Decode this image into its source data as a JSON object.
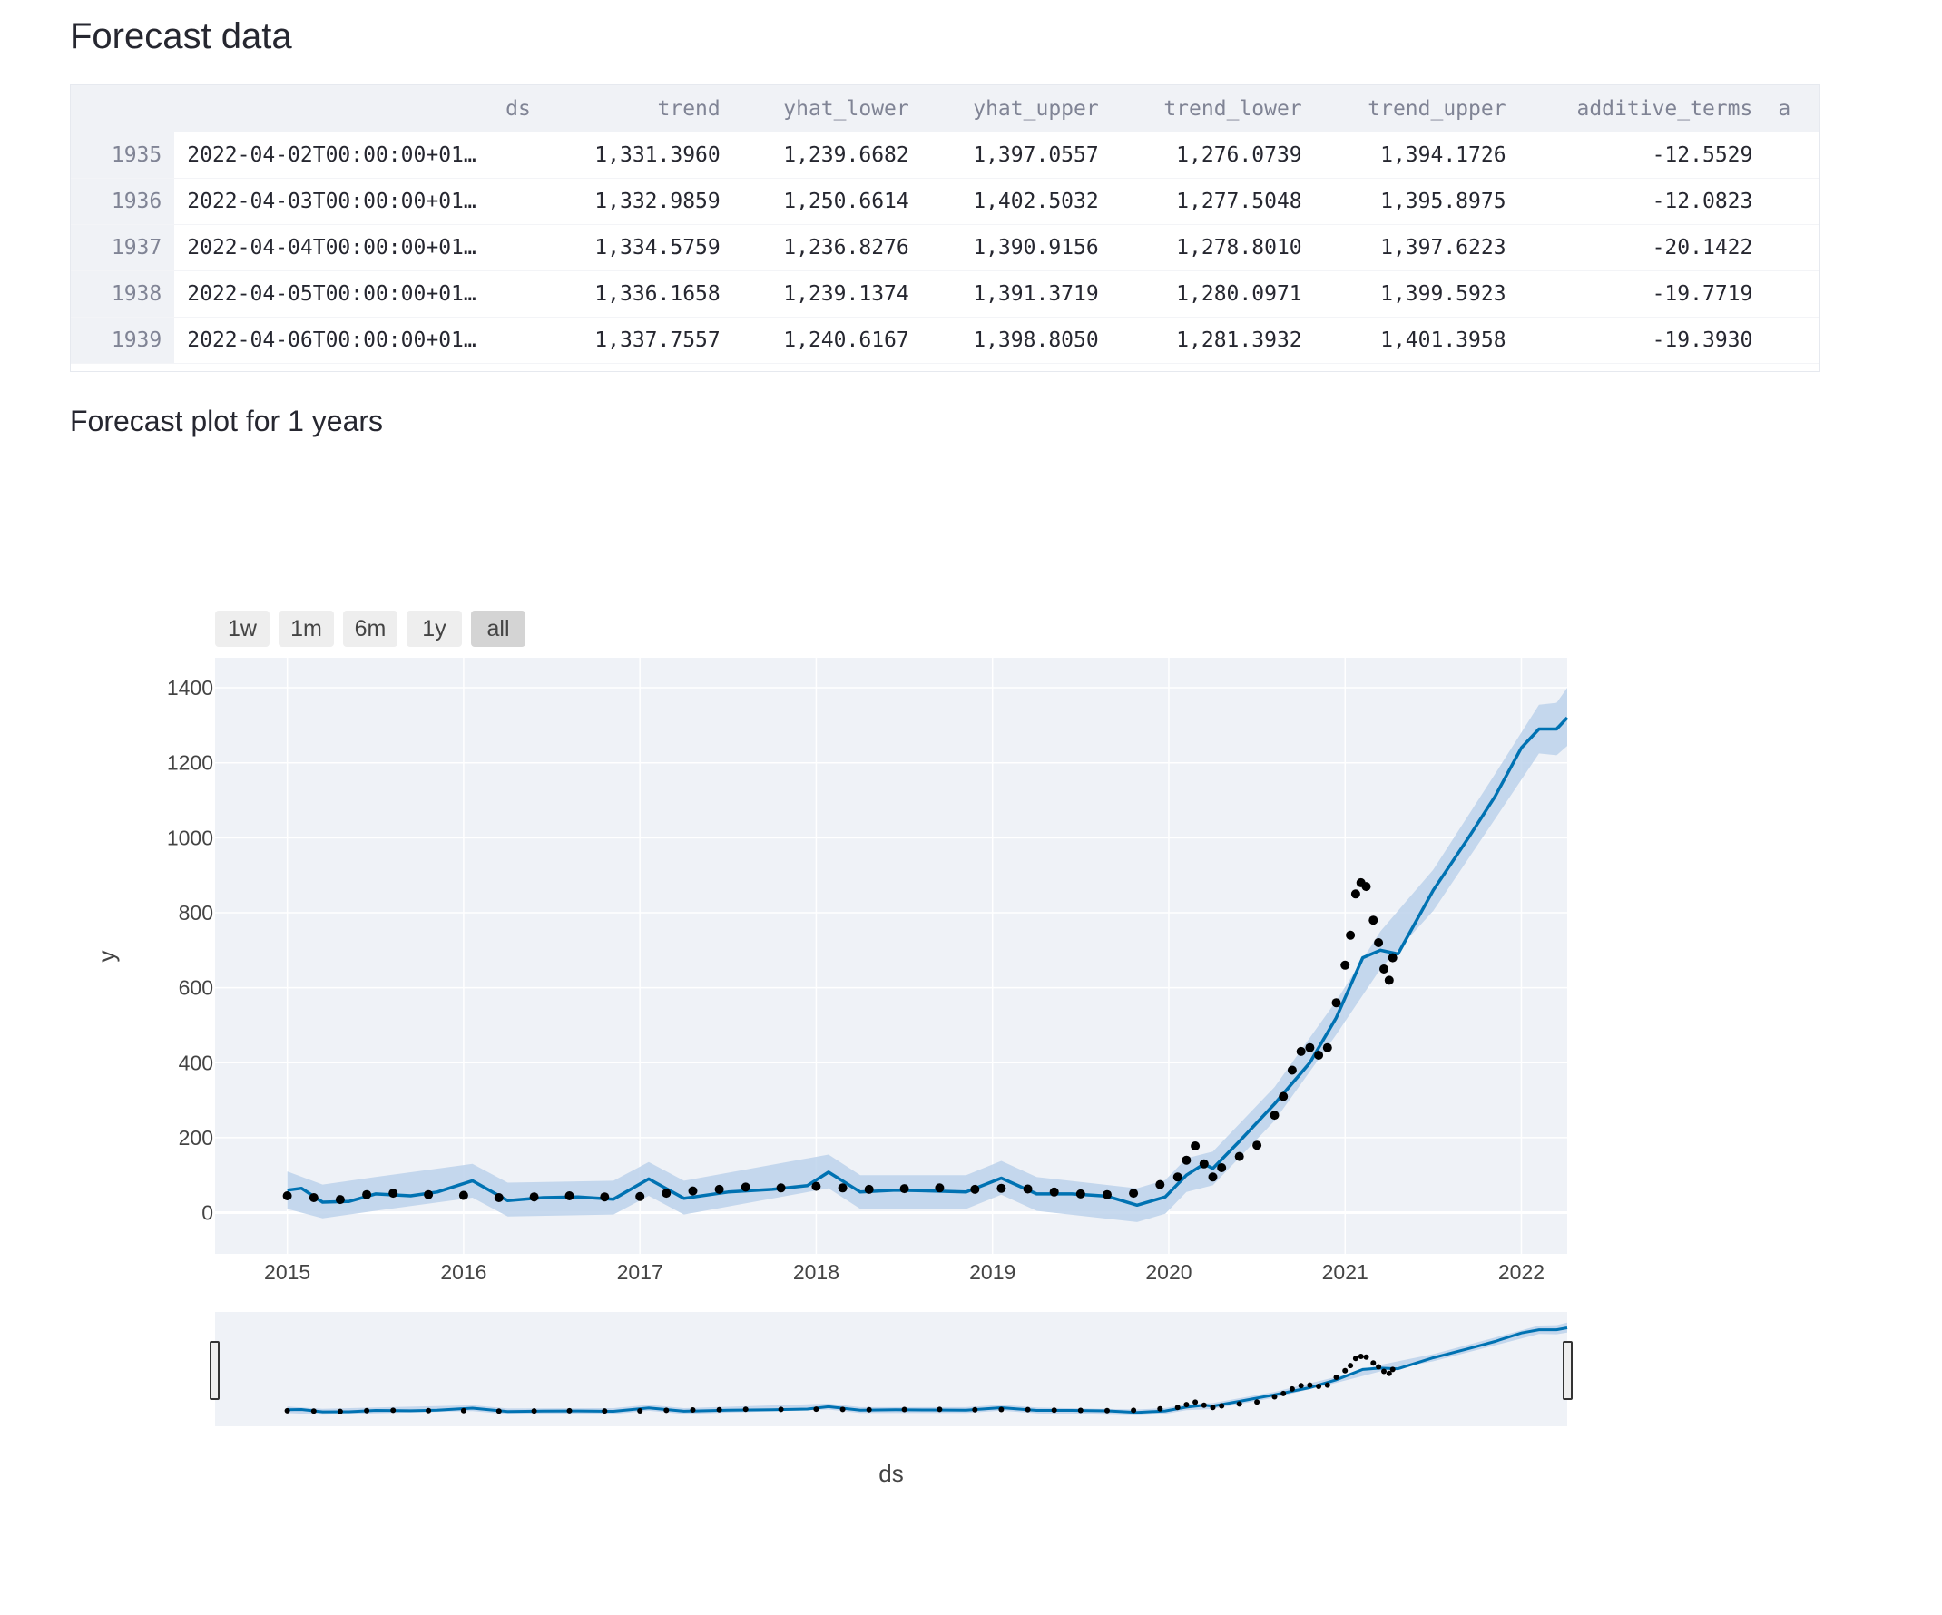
{
  "headings": {
    "forecast_data": "Forecast data",
    "forecast_plot": "Forecast plot for 1 years"
  },
  "table": {
    "columns": [
      "",
      "ds",
      "trend",
      "yhat_lower",
      "yhat_upper",
      "trend_lower",
      "trend_upper",
      "additive_terms",
      "a"
    ],
    "rows": [
      {
        "index": "1935",
        "ds": "2022-04-02T00:00:00+01…",
        "trend": "1,331.3960",
        "yhat_lower": "1,239.6682",
        "yhat_upper": "1,397.0557",
        "trend_lower": "1,276.0739",
        "trend_upper": "1,394.1726",
        "additive_terms": "-12.5529"
      },
      {
        "index": "1936",
        "ds": "2022-04-03T00:00:00+01…",
        "trend": "1,332.9859",
        "yhat_lower": "1,250.6614",
        "yhat_upper": "1,402.5032",
        "trend_lower": "1,277.5048",
        "trend_upper": "1,395.8975",
        "additive_terms": "-12.0823"
      },
      {
        "index": "1937",
        "ds": "2022-04-04T00:00:00+01…",
        "trend": "1,334.5759",
        "yhat_lower": "1,236.8276",
        "yhat_upper": "1,390.9156",
        "trend_lower": "1,278.8010",
        "trend_upper": "1,397.6223",
        "additive_terms": "-20.1422"
      },
      {
        "index": "1938",
        "ds": "2022-04-05T00:00:00+01…",
        "trend": "1,336.1658",
        "yhat_lower": "1,239.1374",
        "yhat_upper": "1,391.3719",
        "trend_lower": "1,280.0971",
        "trend_upper": "1,399.5923",
        "additive_terms": "-19.7719"
      },
      {
        "index": "1939",
        "ds": "2022-04-06T00:00:00+01…",
        "trend": "1,337.7557",
        "yhat_lower": "1,240.6167",
        "yhat_upper": "1,398.8050",
        "trend_lower": "1,281.3932",
        "trend_upper": "1,401.3958",
        "additive_terms": "-19.3930"
      }
    ]
  },
  "range_selector": {
    "buttons": [
      "1w",
      "1m",
      "6m",
      "1y",
      "all"
    ],
    "active": "all"
  },
  "chart_data": {
    "type": "line",
    "xlabel": "ds",
    "ylabel": "y",
    "x_tick_labels": [
      "2015",
      "2016",
      "2017",
      "2018",
      "2019",
      "2020",
      "2021",
      "2022"
    ],
    "y_tick_labels": [
      "0",
      "200",
      "400",
      "600",
      "800",
      "1000",
      "1200",
      "1400"
    ],
    "xlim": [
      2014.59,
      2022.26
    ],
    "ylim": [
      -110,
      1480
    ],
    "grid": true,
    "legend": "none",
    "colors": {
      "forecast_line": "#0072b2",
      "uncertainty_band": "#b9cfea",
      "actual_points": "#000000",
      "plot_background": "#eff2f7"
    },
    "series": [
      {
        "kind": "markers",
        "points": [
          [
            2015.0,
            45
          ],
          [
            2015.15,
            40
          ],
          [
            2015.3,
            35
          ],
          [
            2015.45,
            48
          ],
          [
            2015.6,
            52
          ],
          [
            2015.8,
            48
          ],
          [
            2016.0,
            46
          ],
          [
            2016.2,
            40
          ],
          [
            2016.4,
            42
          ],
          [
            2016.6,
            45
          ],
          [
            2016.8,
            42
          ],
          [
            2017.0,
            43
          ],
          [
            2017.15,
            52
          ],
          [
            2017.3,
            58
          ],
          [
            2017.45,
            62
          ],
          [
            2017.6,
            68
          ],
          [
            2017.8,
            66
          ],
          [
            2018.0,
            70
          ],
          [
            2018.15,
            66
          ],
          [
            2018.3,
            62
          ],
          [
            2018.5,
            64
          ],
          [
            2018.7,
            66
          ],
          [
            2018.9,
            62
          ],
          [
            2019.05,
            65
          ],
          [
            2019.2,
            63
          ],
          [
            2019.35,
            55
          ],
          [
            2019.5,
            50
          ],
          [
            2019.65,
            48
          ],
          [
            2019.8,
            52
          ],
          [
            2019.95,
            75
          ],
          [
            2020.05,
            95
          ],
          [
            2020.1,
            140
          ],
          [
            2020.15,
            178
          ],
          [
            2020.2,
            130
          ],
          [
            2020.25,
            95
          ],
          [
            2020.3,
            120
          ],
          [
            2020.4,
            150
          ],
          [
            2020.5,
            180
          ],
          [
            2020.6,
            260
          ],
          [
            2020.65,
            310
          ],
          [
            2020.7,
            380
          ],
          [
            2020.75,
            430
          ],
          [
            2020.8,
            440
          ],
          [
            2020.85,
            420
          ],
          [
            2020.9,
            440
          ],
          [
            2020.95,
            560
          ],
          [
            2021.0,
            660
          ],
          [
            2021.03,
            740
          ],
          [
            2021.06,
            850
          ],
          [
            2021.09,
            880
          ],
          [
            2021.12,
            870
          ],
          [
            2021.16,
            780
          ],
          [
            2021.19,
            720
          ],
          [
            2021.22,
            650
          ],
          [
            2021.25,
            620
          ],
          [
            2021.27,
            680
          ]
        ]
      },
      {
        "kind": "line",
        "points": [
          [
            2015.0,
            60
          ],
          [
            2015.08,
            65
          ],
          [
            2015.2,
            28
          ],
          [
            2015.35,
            30
          ],
          [
            2015.5,
            50
          ],
          [
            2015.7,
            45
          ],
          [
            2015.85,
            55
          ],
          [
            2016.05,
            85
          ],
          [
            2016.25,
            32
          ],
          [
            2016.45,
            40
          ],
          [
            2016.65,
            42
          ],
          [
            2016.85,
            36
          ],
          [
            2017.05,
            90
          ],
          [
            2017.25,
            38
          ],
          [
            2017.5,
            55
          ],
          [
            2017.75,
            62
          ],
          [
            2017.95,
            72
          ],
          [
            2018.07,
            108
          ],
          [
            2018.25,
            55
          ],
          [
            2018.45,
            60
          ],
          [
            2018.65,
            58
          ],
          [
            2018.85,
            55
          ],
          [
            2019.05,
            92
          ],
          [
            2019.25,
            50
          ],
          [
            2019.45,
            50
          ],
          [
            2019.65,
            44
          ],
          [
            2019.82,
            20
          ],
          [
            2019.98,
            42
          ],
          [
            2020.1,
            100
          ],
          [
            2020.2,
            130
          ],
          [
            2020.25,
            118
          ],
          [
            2020.4,
            190
          ],
          [
            2020.6,
            290
          ],
          [
            2020.8,
            400
          ],
          [
            2020.95,
            520
          ],
          [
            2021.1,
            680
          ],
          [
            2021.2,
            700
          ],
          [
            2021.3,
            690
          ],
          [
            2021.5,
            860
          ],
          [
            2021.7,
            1000
          ],
          [
            2021.85,
            1110
          ],
          [
            2022.0,
            1240
          ],
          [
            2022.1,
            1290
          ],
          [
            2022.2,
            1290
          ],
          [
            2022.26,
            1320
          ]
        ]
      },
      {
        "kind": "band",
        "points": [
          [
            2015.0,
            10,
            110
          ],
          [
            2015.2,
            -15,
            75
          ],
          [
            2015.5,
            5,
            95
          ],
          [
            2016.05,
            40,
            130
          ],
          [
            2016.25,
            -10,
            80
          ],
          [
            2016.85,
            -5,
            85
          ],
          [
            2017.05,
            45,
            135
          ],
          [
            2017.25,
            -5,
            85
          ],
          [
            2018.07,
            65,
            155
          ],
          [
            2018.25,
            10,
            100
          ],
          [
            2018.85,
            10,
            100
          ],
          [
            2019.05,
            48,
            138
          ],
          [
            2019.25,
            5,
            95
          ],
          [
            2019.82,
            -25,
            65
          ],
          [
            2019.98,
            -3,
            87
          ],
          [
            2020.1,
            55,
            145
          ],
          [
            2020.25,
            73,
            163
          ],
          [
            2020.6,
            245,
            335
          ],
          [
            2020.95,
            475,
            565
          ],
          [
            2021.2,
            650,
            750
          ],
          [
            2021.5,
            805,
            915
          ],
          [
            2021.85,
            1050,
            1170
          ],
          [
            2022.1,
            1225,
            1355
          ],
          [
            2022.2,
            1220,
            1360
          ],
          [
            2022.26,
            1245,
            1400
          ]
        ]
      }
    ]
  }
}
